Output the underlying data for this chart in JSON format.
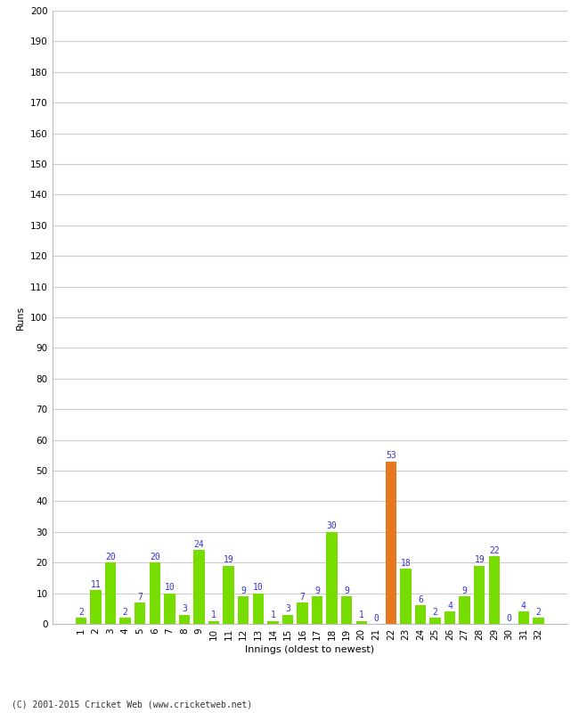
{
  "innings": [
    1,
    2,
    3,
    4,
    5,
    6,
    7,
    8,
    9,
    10,
    11,
    12,
    13,
    14,
    15,
    16,
    17,
    18,
    19,
    20,
    21,
    22,
    23,
    24,
    25,
    26,
    27,
    28,
    29,
    30,
    31,
    32
  ],
  "runs": [
    2,
    11,
    20,
    2,
    7,
    20,
    10,
    3,
    24,
    1,
    19,
    9,
    10,
    1,
    3,
    7,
    9,
    30,
    9,
    1,
    0,
    53,
    18,
    6,
    2,
    4,
    9,
    19,
    22,
    0,
    4,
    2
  ],
  "highlight_innings": [
    22
  ],
  "bar_color_normal": "#77dd00",
  "bar_color_highlight": "#e87820",
  "label_color": "#3333cc",
  "background_color": "#ffffff",
  "grid_color": "#cccccc",
  "xlabel": "Innings (oldest to newest)",
  "ylabel": "Runs",
  "ylim": [
    0,
    200
  ],
  "yticks": [
    0,
    10,
    20,
    30,
    40,
    50,
    60,
    70,
    80,
    90,
    100,
    110,
    120,
    130,
    140,
    150,
    160,
    170,
    180,
    190,
    200
  ],
  "footer": "(C) 2001-2015 Cricket Web (www.cricketweb.net)",
  "label_fontsize": 7,
  "axis_fontsize": 8,
  "tick_fontsize": 7.5
}
